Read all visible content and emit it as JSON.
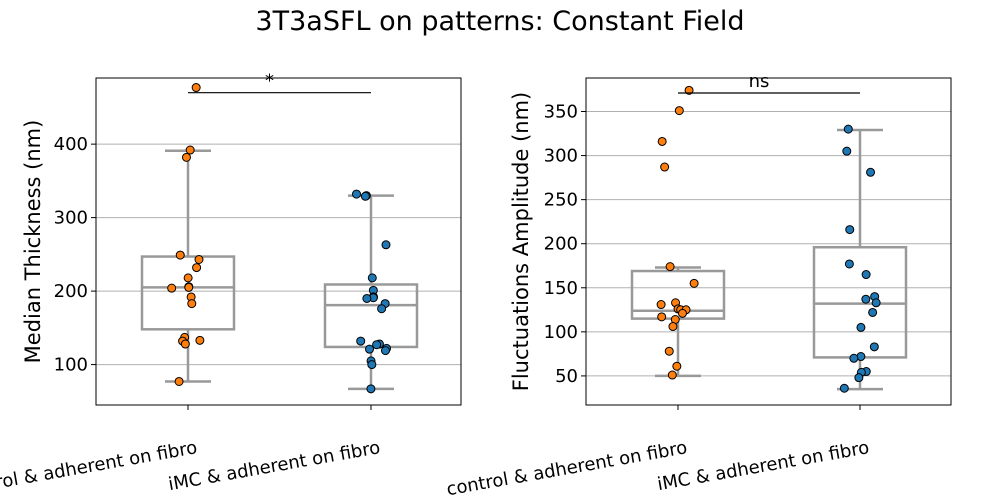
{
  "figure": {
    "suptitle": "3T3aSFL on patterns: Constant Field"
  },
  "colors": {
    "control": "#ff7f0e",
    "imc": "#1f77b4",
    "box": "#999999",
    "grid": "#b0b0b0",
    "marker_edge": "#000000"
  },
  "chart_data": [
    {
      "type": "box",
      "ylabel": "Median Thickness (nm)",
      "xlabel": "",
      "categories": [
        "control & adherent on fibro",
        "iMC & adherent on fibro"
      ],
      "ylim": [
        45,
        490
      ],
      "yticks": [
        100,
        200,
        300,
        400
      ],
      "grid": "y",
      "significance": {
        "label": "*",
        "between": [
          0,
          1
        ],
        "y": 470
      },
      "boxes": [
        {
          "whisker_low": 77,
          "q1": 148,
          "median": 205,
          "q3": 247,
          "whisker_high": 391
        },
        {
          "whisker_low": 67,
          "q1": 124,
          "median": 181,
          "q3": 209,
          "whisker_high": 330
        }
      ],
      "series": [
        {
          "name": "control & adherent on fibro",
          "values": [
            477,
            392,
            382,
            249,
            243,
            232,
            218,
            206,
            205,
            204,
            192,
            183,
            137,
            133,
            132,
            128,
            77
          ]
        },
        {
          "name": "iMC & adherent on fibro",
          "values": [
            332,
            330,
            329,
            263,
            218,
            201,
            192,
            192,
            191,
            190,
            183,
            176,
            132,
            128,
            127,
            122,
            121,
            119,
            105,
            100,
            67
          ]
        }
      ]
    },
    {
      "type": "box",
      "ylabel": "Fluctuations Amplitude (nm)",
      "xlabel": "",
      "categories": [
        "control & adherent on fibro",
        "iMC & adherent on fibro"
      ],
      "ylim": [
        17,
        388
      ],
      "yticks": [
        50,
        100,
        150,
        200,
        250,
        300,
        350
      ],
      "grid": "y",
      "significance": {
        "label": "ns",
        "between": [
          0,
          1
        ],
        "y": 371
      },
      "boxes": [
        {
          "whisker_low": 50,
          "q1": 115,
          "median": 124,
          "q3": 169,
          "whisker_high": 173
        },
        {
          "whisker_low": 35,
          "q1": 71,
          "median": 132,
          "q3": 196,
          "whisker_high": 329
        }
      ],
      "series": [
        {
          "name": "control & adherent on fibro",
          "values": [
            374,
            351,
            316,
            287,
            174,
            155,
            133,
            131,
            126,
            125,
            125,
            121,
            117,
            114,
            106,
            78,
            61,
            51
          ]
        },
        {
          "name": "iMC & adherent on fibro",
          "values": [
            330,
            305,
            281,
            216,
            177,
            165,
            140,
            137,
            133,
            122,
            105,
            83,
            72,
            70,
            55,
            54,
            48,
            36
          ]
        }
      ]
    }
  ]
}
